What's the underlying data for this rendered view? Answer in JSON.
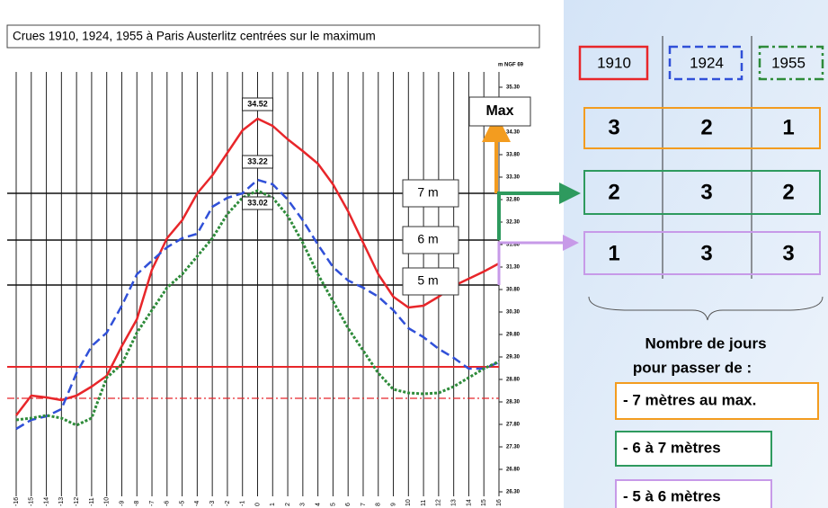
{
  "chart_data": {
    "type": "line",
    "title": "Crues 1910, 1924, 1955 à Paris Austerlitz centrées sur le maximum",
    "y_axis_label": "m NGF 69",
    "x": [
      -16,
      -15,
      -14,
      -13,
      -12,
      -11,
      -10,
      -9,
      -8,
      -7,
      -6,
      -5,
      -4,
      -3,
      -2,
      -1,
      0,
      1,
      2,
      3,
      4,
      5,
      6,
      7,
      8,
      9,
      10,
      11,
      12,
      13,
      14,
      15,
      16
    ],
    "series": [
      {
        "name": "1910",
        "color": "#e8262a",
        "style": "solid",
        "values": [
          28.0,
          28.44,
          28.4,
          28.34,
          28.44,
          28.64,
          28.88,
          29.54,
          30.14,
          31.24,
          31.94,
          32.34,
          32.94,
          33.34,
          33.84,
          34.34,
          34.6,
          34.44,
          34.14,
          33.88,
          33.6,
          33.14,
          32.54,
          31.84,
          31.14,
          30.64,
          30.4,
          30.44,
          30.64,
          30.88,
          31.04,
          31.2,
          31.38
        ]
      },
      {
        "name": "1924",
        "color": "#3050d8",
        "style": "dashed",
        "values": [
          27.7,
          27.9,
          27.98,
          28.14,
          28.94,
          29.54,
          29.84,
          30.44,
          31.14,
          31.44,
          31.74,
          31.94,
          32.04,
          32.64,
          32.84,
          32.94,
          33.24,
          33.14,
          32.8,
          32.34,
          31.8,
          31.3,
          31.0,
          30.84,
          30.64,
          30.34,
          29.94,
          29.74,
          29.48,
          29.28,
          29.04,
          29.04,
          29.18
        ]
      },
      {
        "name": "1955",
        "color": "#2e8b3a",
        "style": "dotted",
        "values": [
          27.9,
          27.94,
          28.0,
          27.94,
          27.78,
          27.94,
          28.84,
          29.14,
          29.84,
          30.34,
          30.84,
          31.14,
          31.54,
          31.94,
          32.48,
          32.84,
          33.0,
          32.84,
          32.44,
          31.84,
          31.14,
          30.54,
          29.94,
          29.44,
          28.94,
          28.58,
          28.5,
          28.48,
          28.5,
          28.64,
          28.84,
          29.04,
          29.2
        ]
      }
    ],
    "annotations": [
      "34.52",
      "33.22",
      "33.02"
    ],
    "xlim": [
      -16,
      16
    ],
    "xticks": [
      -16,
      -15,
      -14,
      -13,
      -12,
      -11,
      -10,
      -9,
      -8,
      -7,
      -6,
      -5,
      -4,
      -3,
      -2,
      -1,
      0,
      1,
      2,
      3,
      4,
      5,
      6,
      7,
      8,
      9,
      10,
      11,
      12,
      13,
      14,
      15,
      16
    ],
    "ylim": [
      26.04,
      35.64
    ],
    "yticks": [
      {
        "value": 35.3,
        "label": "35.30"
      },
      {
        "value": 34.8,
        "label": "34.80"
      },
      {
        "value": 34.3,
        "label": "34.30"
      },
      {
        "value": 33.8,
        "label": "33.80"
      },
      {
        "value": 33.3,
        "label": "33.30"
      },
      {
        "value": 32.8,
        "label": "32.80"
      },
      {
        "value": 32.3,
        "label": "32.30"
      },
      {
        "value": 31.8,
        "label": "31.80"
      },
      {
        "value": 31.3,
        "label": "31.30"
      },
      {
        "value": 30.8,
        "label": "30.80"
      },
      {
        "value": 30.3,
        "label": "30.30"
      },
      {
        "value": 29.8,
        "label": "29.80"
      },
      {
        "value": 29.3,
        "label": "29.30"
      },
      {
        "value": 28.8,
        "label": "28.80"
      },
      {
        "value": 28.3,
        "label": "28.30"
      },
      {
        "value": 27.8,
        "label": "27.80"
      },
      {
        "value": 27.3,
        "label": "27.30"
      },
      {
        "value": 26.8,
        "label": "26.80"
      },
      {
        "value": 26.3,
        "label": "26.30"
      }
    ],
    "levels": [
      {
        "label": "7 m",
        "value": 32.94
      },
      {
        "label": "6 m",
        "value": 31.9
      },
      {
        "label": "5 m",
        "value": 30.9
      }
    ],
    "max_label": "Max",
    "hlines": [
      {
        "value": 29.08,
        "color": "#e8262a",
        "style": "solid"
      },
      {
        "value": 28.38,
        "color": "#e8262a",
        "style": "dashdot"
      }
    ],
    "grid": true
  },
  "table": {
    "headers": [
      "1910",
      "1924",
      "1955"
    ],
    "rows": [
      [
        "3",
        "2",
        "1"
      ],
      [
        "2",
        "3",
        "2"
      ],
      [
        "1",
        "3",
        "3"
      ]
    ]
  },
  "caption": [
    "Nombre de jours",
    "pour passer de :"
  ],
  "ranges": [
    "- 7 mètres au max.",
    "- 6 à 7 mètres",
    "- 5 à 6 mètres"
  ]
}
